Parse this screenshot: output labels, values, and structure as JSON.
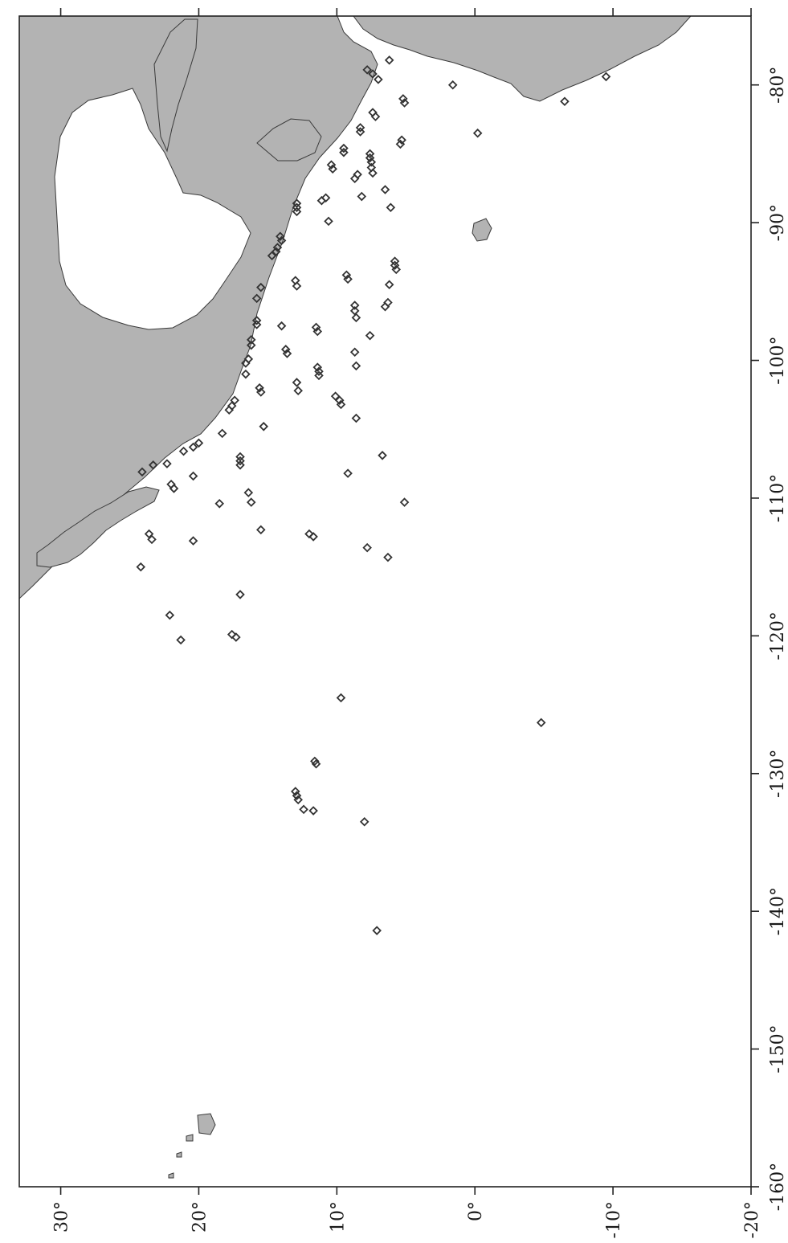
{
  "map": {
    "projection": "equirectangular",
    "orientation": "rotated 90° clockwise (longitude along vertical axis, latitude along horizontal axis)",
    "lon_range": [
      -160,
      -75
    ],
    "lat_range": [
      -20,
      33
    ],
    "colors": {
      "land": "#b3b3b3",
      "ocean": "#ffffff",
      "coast": "#3a3a3a",
      "station": "#333333"
    },
    "lat_ticks": [
      {
        "value": 30,
        "label": "30°"
      },
      {
        "value": 20,
        "label": "20°"
      },
      {
        "value": 10,
        "label": "10°"
      },
      {
        "value": 0,
        "label": "0°"
      },
      {
        "value": -10,
        "label": "-10°"
      },
      {
        "value": -20,
        "label": "-20°"
      }
    ],
    "lon_ticks": [
      {
        "value": -80,
        "label": "-80°"
      },
      {
        "value": -90,
        "label": "-90°"
      },
      {
        "value": -100,
        "label": "-100°"
      },
      {
        "value": -110,
        "label": "-110°"
      },
      {
        "value": -120,
        "label": "-120°"
      },
      {
        "value": -130,
        "label": "-130°"
      },
      {
        "value": -140,
        "label": "-140°"
      },
      {
        "value": -150,
        "label": "-150°"
      },
      {
        "value": -160,
        "label": "-160°"
      }
    ],
    "stations": [
      [
        -78.9,
        7.8
      ],
      [
        -79.2,
        7.4
      ],
      [
        -79.6,
        7.0
      ],
      [
        -78.2,
        6.2
      ],
      [
        -80.0,
        1.6
      ],
      [
        -79.4,
        -9.5
      ],
      [
        -81.2,
        -6.5
      ],
      [
        -83.5,
        -0.2
      ],
      [
        -81.0,
        5.2
      ],
      [
        -81.3,
        5.1
      ],
      [
        -82.0,
        7.4
      ],
      [
        -82.3,
        7.2
      ],
      [
        -83.1,
        8.3
      ],
      [
        -83.4,
        8.3
      ],
      [
        -84.0,
        5.3
      ],
      [
        -84.3,
        5.4
      ],
      [
        -84.6,
        9.5
      ],
      [
        -84.9,
        9.5
      ],
      [
        -85.0,
        7.6
      ],
      [
        -85.3,
        7.6
      ],
      [
        -85.6,
        7.5
      ],
      [
        -86.0,
        7.5
      ],
      [
        -86.4,
        7.4
      ],
      [
        -85.8,
        10.4
      ],
      [
        -86.1,
        10.3
      ],
      [
        -86.5,
        8.5
      ],
      [
        -86.8,
        8.7
      ],
      [
        -87.6,
        6.5
      ],
      [
        -88.1,
        8.2
      ],
      [
        -88.2,
        10.8
      ],
      [
        -88.4,
        11.1
      ],
      [
        -88.6,
        12.9
      ],
      [
        -88.9,
        12.9
      ],
      [
        -89.2,
        12.9
      ],
      [
        -88.9,
        6.1
      ],
      [
        -89.9,
        10.6
      ],
      [
        -91.0,
        14.1
      ],
      [
        -91.3,
        14.0
      ],
      [
        -91.8,
        14.3
      ],
      [
        -92.1,
        14.4
      ],
      [
        -92.4,
        14.7
      ],
      [
        -92.8,
        5.8
      ],
      [
        -93.1,
        5.8
      ],
      [
        -93.4,
        5.7
      ],
      [
        -93.8,
        9.3
      ],
      [
        -94.1,
        9.2
      ],
      [
        -94.2,
        13.0
      ],
      [
        -94.5,
        6.2
      ],
      [
        -94.6,
        12.9
      ],
      [
        -94.7,
        15.5
      ],
      [
        -95.5,
        15.8
      ],
      [
        -95.8,
        6.3
      ],
      [
        -96.1,
        6.5
      ],
      [
        -96.0,
        8.7
      ],
      [
        -96.4,
        8.7
      ],
      [
        -96.9,
        8.6
      ],
      [
        -97.1,
        15.8
      ],
      [
        -97.4,
        15.8
      ],
      [
        -97.6,
        11.5
      ],
      [
        -97.9,
        11.4
      ],
      [
        -97.5,
        14.0
      ],
      [
        -98.2,
        7.6
      ],
      [
        -98.5,
        16.2
      ],
      [
        -98.9,
        16.2
      ],
      [
        -99.2,
        13.7
      ],
      [
        -99.5,
        13.6
      ],
      [
        -99.4,
        8.7
      ],
      [
        -99.9,
        16.4
      ],
      [
        -100.2,
        16.6
      ],
      [
        -100.4,
        8.6
      ],
      [
        -100.5,
        11.4
      ],
      [
        -100.8,
        11.3
      ],
      [
        -101.1,
        11.3
      ],
      [
        -101.0,
        16.6
      ],
      [
        -101.6,
        12.9
      ],
      [
        -102.0,
        15.6
      ],
      [
        -102.3,
        15.5
      ],
      [
        -102.2,
        12.8
      ],
      [
        -102.6,
        10.1
      ],
      [
        -102.9,
        9.8
      ],
      [
        -103.2,
        9.7
      ],
      [
        -102.9,
        17.4
      ],
      [
        -103.3,
        17.6
      ],
      [
        -103.6,
        17.8
      ],
      [
        -104.2,
        8.6
      ],
      [
        -104.8,
        15.3
      ],
      [
        -105.3,
        18.3
      ],
      [
        -106.0,
        20.0
      ],
      [
        -106.3,
        20.4
      ],
      [
        -106.6,
        21.1
      ],
      [
        -106.9,
        6.7
      ],
      [
        -107.0,
        17.0
      ],
      [
        -107.3,
        17.0
      ],
      [
        -107.6,
        17.0
      ],
      [
        -107.5,
        22.3
      ],
      [
        -107.6,
        23.3
      ],
      [
        -108.1,
        24.1
      ],
      [
        -108.2,
        9.2
      ],
      [
        -108.4,
        20.4
      ],
      [
        -109.0,
        22.0
      ],
      [
        -109.3,
        21.8
      ],
      [
        -109.6,
        16.4
      ],
      [
        -110.3,
        16.2
      ],
      [
        -110.4,
        18.5
      ],
      [
        -110.3,
        5.1
      ],
      [
        -112.3,
        15.5
      ],
      [
        -112.6,
        12.0
      ],
      [
        -112.8,
        11.7
      ],
      [
        -112.6,
        23.6
      ],
      [
        -113.0,
        23.4
      ],
      [
        -113.1,
        20.4
      ],
      [
        -113.6,
        7.8
      ],
      [
        -114.3,
        6.3
      ],
      [
        -115.0,
        24.2
      ],
      [
        -117.0,
        17.0
      ],
      [
        -118.5,
        22.1
      ],
      [
        -119.9,
        17.6
      ],
      [
        -120.1,
        17.3
      ],
      [
        -120.3,
        21.3
      ],
      [
        -124.5,
        9.7
      ],
      [
        -126.3,
        -4.8
      ],
      [
        -129.1,
        11.6
      ],
      [
        -129.3,
        11.5
      ],
      [
        -131.3,
        13.0
      ],
      [
        -131.6,
        12.9
      ],
      [
        -131.9,
        12.8
      ],
      [
        -132.6,
        12.4
      ],
      [
        -132.7,
        11.7
      ],
      [
        -133.5,
        8.0
      ],
      [
        -141.4,
        7.1
      ]
    ]
  }
}
